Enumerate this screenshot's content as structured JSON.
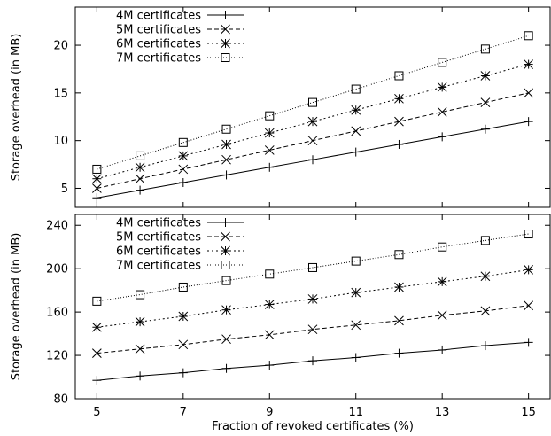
{
  "figure": {
    "shared_xlabel": "Fraction of revoked certificates (%)"
  },
  "chart_data": [
    {
      "type": "line",
      "title": "",
      "xlabel": "",
      "ylabel": "Storage overhead (in MB)",
      "x": [
        5,
        6,
        7,
        8,
        9,
        10,
        11,
        12,
        13,
        14,
        15
      ],
      "xlim": [
        4.5,
        15.5
      ],
      "ylim": [
        3,
        24
      ],
      "yticks": [
        5,
        10,
        15,
        20
      ],
      "xticks": [
        5,
        7,
        9,
        11,
        13,
        15
      ],
      "show_xtick_labels": false,
      "grid": false,
      "legend_position": "top-left",
      "series": [
        {
          "name": "4M certificates",
          "marker": "plus",
          "dash": "solid",
          "values": [
            4,
            4.8,
            5.6,
            6.4,
            7.2,
            8,
            8.8,
            9.6,
            10.4,
            11.2,
            12
          ]
        },
        {
          "name": "5M certificates",
          "marker": "x",
          "dash": "dashed",
          "values": [
            5,
            6,
            7,
            8,
            9,
            10,
            11,
            12,
            13,
            14,
            15
          ]
        },
        {
          "name": "6M certificates",
          "marker": "star",
          "dash": "dotted",
          "values": [
            6,
            7.2,
            8.4,
            9.6,
            10.8,
            12,
            13.2,
            14.4,
            15.6,
            16.8,
            18
          ]
        },
        {
          "name": "7M certificates",
          "marker": "square",
          "dash": "fine-dotted",
          "values": [
            7,
            8.4,
            9.8,
            11.2,
            12.6,
            14,
            15.4,
            16.8,
            18.2,
            19.6,
            21
          ]
        }
      ]
    },
    {
      "type": "line",
      "title": "",
      "xlabel": "Fraction of revoked certificates (%)",
      "ylabel": "Storage overhead (in MB)",
      "x": [
        5,
        6,
        7,
        8,
        9,
        10,
        11,
        12,
        13,
        14,
        15
      ],
      "xlim": [
        4.5,
        15.5
      ],
      "ylim": [
        80,
        250
      ],
      "yticks": [
        80,
        120,
        160,
        200,
        240
      ],
      "xticks": [
        5,
        7,
        9,
        11,
        13,
        15
      ],
      "show_xtick_labels": true,
      "grid": false,
      "legend_position": "top-left",
      "series": [
        {
          "name": "4M certificates",
          "marker": "plus",
          "dash": "solid",
          "values": [
            97,
            101,
            104,
            108,
            111,
            115,
            118,
            122,
            125,
            129,
            132
          ]
        },
        {
          "name": "5M certificates",
          "marker": "x",
          "dash": "dashed",
          "values": [
            122,
            126,
            130,
            135,
            139,
            144,
            148,
            152,
            157,
            161,
            166
          ]
        },
        {
          "name": "6M certificates",
          "marker": "star",
          "dash": "dotted",
          "values": [
            146,
            151,
            156,
            162,
            167,
            172,
            178,
            183,
            188,
            193,
            199
          ]
        },
        {
          "name": "7M certificates",
          "marker": "square",
          "dash": "fine-dotted",
          "values": [
            170,
            176,
            183,
            189,
            195,
            201,
            207,
            213,
            220,
            226,
            232
          ]
        }
      ]
    }
  ]
}
